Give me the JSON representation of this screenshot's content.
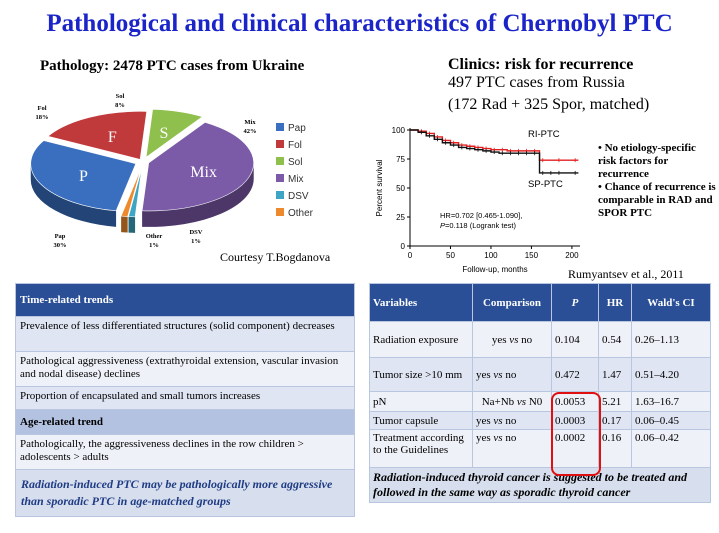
{
  "title": "Pathological and clinical characteristics of Chernobyl PTC",
  "pathology": {
    "heading": "Pathology: 2478 PTC cases from Ukraine",
    "courtesy": "Courtesy T.Bogdanova"
  },
  "clinics": {
    "heading": "Clinics: risk for recurrence",
    "line1": "497 PTC cases from Russia",
    "line2": "(172 Rad + 325 Spor, matched)",
    "bullet1": "• No etiology-specific risk factors for recurrence",
    "bullet2": "• Chance of recurrence is comparable in RAD and SPOR PTC",
    "citation": "Rumyantsev et al., 2011"
  },
  "colors": {
    "pap": "#3a6fc0",
    "fol": "#c0393b",
    "sol": "#8fbf4d",
    "mix": "#7b5aa8",
    "dsv": "#3ea6c4",
    "other": "#ee8a2b",
    "header_blue": "#2a4f96",
    "title_blue": "#1a24c8"
  },
  "chart_data": [
    {
      "type": "pie",
      "categories": [
        "Pap",
        "Fol",
        "Sol",
        "Mix",
        "DSV",
        "Other"
      ],
      "values": [
        30,
        18,
        8,
        42,
        1,
        1
      ],
      "slice_letters": [
        "P",
        "F",
        "S",
        "Mix",
        "",
        ""
      ],
      "slice_labels": [
        "Pap\n30%",
        "Fol\n18%",
        "Sol\n8%",
        "Mix\n42%",
        "DSV\n1%",
        "Other\n1%"
      ],
      "legend": [
        "Pap",
        "Fol",
        "Sol",
        "Mix",
        "DSV",
        "Other"
      ],
      "legend_position": "right"
    },
    {
      "type": "line",
      "title": "",
      "xlabel": "Follow-up, months",
      "ylabel": "Percent survival",
      "xlim": [
        0,
        210
      ],
      "ylim": [
        0,
        100
      ],
      "xticks": [
        0,
        50,
        100,
        150,
        200
      ],
      "yticks": [
        0,
        25,
        50,
        75,
        100
      ],
      "series": [
        {
          "name": "RI-PTC",
          "color": "#e02020",
          "x": [
            0,
            10,
            20,
            30,
            40,
            50,
            60,
            70,
            80,
            90,
            100,
            110,
            120,
            130,
            140,
            150,
            160,
            180,
            200,
            208
          ],
          "y": [
            100,
            99,
            97,
            94,
            91,
            89,
            87,
            86,
            85,
            84,
            83,
            83,
            82,
            82,
            82,
            82,
            74,
            74,
            74,
            74
          ]
        },
        {
          "name": "SP-PTC",
          "color": "#111111",
          "x": [
            0,
            10,
            20,
            30,
            40,
            50,
            60,
            70,
            80,
            90,
            100,
            110,
            120,
            130,
            140,
            150,
            160,
            170,
            180,
            200,
            208
          ],
          "y": [
            100,
            98,
            95,
            92,
            89,
            87,
            85,
            84,
            83,
            82,
            81,
            80,
            80,
            80,
            80,
            80,
            63,
            63,
            63,
            63,
            63
          ]
        }
      ],
      "annotation": {
        "line1": "HR=0.702 [0.465-1.090],",
        "line2_p": "P=0.118",
        "line2_test": "(Logrank test)"
      }
    }
  ],
  "trends": {
    "header": "Time-related trends",
    "rows": [
      "Prevalence of less differentiated structures (solid component) decreases",
      "Pathological aggressiveness (extrathyroidal extension, vascular invasion and nodal disease) declines",
      "Proportion of encapsulated and small tumors increases"
    ],
    "age_header": "Age-related trend",
    "age_row": "Pathologically, the aggressiveness declines in the row children > adolescents > adults",
    "conclusion": "Radiation-induced PTC may be pathologically more aggressive than sporadic PTC in age-matched groups"
  },
  "stats": {
    "headers": [
      "Variables",
      "Comparison",
      "P",
      "HR",
      "Wald's CI"
    ],
    "rows": [
      [
        "Radiation exposure",
        "yes vs no",
        "0.104",
        "0.54",
        "0.26–1.13"
      ],
      [
        "Tumor size >10 mm",
        "yes vs no",
        "0.472",
        "1.47",
        "0.51–4.20"
      ],
      [
        "pN",
        "Na+Nb vs N0",
        "0.0053",
        "5.21",
        "1.63–16.7"
      ],
      [
        "Tumor capsule",
        "yes vs no",
        "0.0003",
        "0.17",
        "0.06–0.45"
      ],
      [
        "Treatment according to the Guidelines",
        "yes vs no",
        "0.0002",
        "0.16",
        "0.06–0.42"
      ]
    ],
    "conclusion": "Radiation-induced thyroid cancer is suggested to be treated and followed in the same way as sporadic thyroid cancer"
  }
}
